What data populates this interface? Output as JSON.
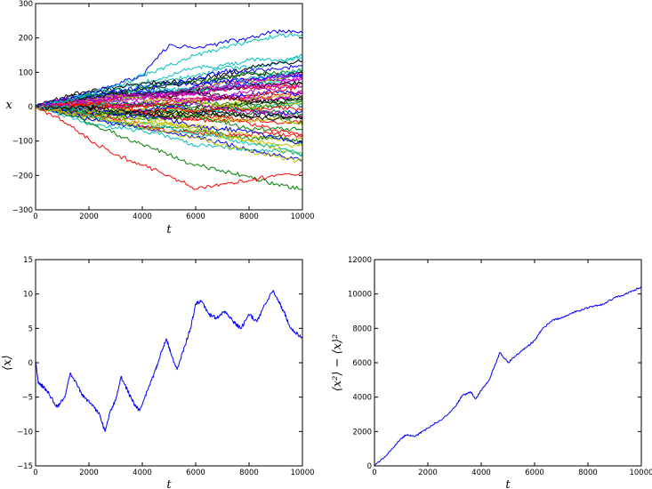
{
  "chart_data": [
    {
      "type": "line",
      "xlabel": "t",
      "ylabel": "x",
      "xlim": [
        0,
        10000
      ],
      "ylim": [
        -300,
        300
      ],
      "xticks": [
        "0",
        "2000",
        "4000",
        "6000",
        "8000",
        "10000"
      ],
      "yticks": [
        "300",
        "200",
        "100",
        "0",
        "−100",
        "−200",
        "−300"
      ],
      "n_series": 50,
      "series_colors": [
        "#0000ff",
        "#008000",
        "#ff0000",
        "#00bfbf",
        "#bf00bf",
        "#bfbf00",
        "#000000"
      ],
      "series": [
        {
          "x": [
            0,
            1000,
            2000,
            3000,
            4000,
            5000,
            6000,
            7000,
            8000,
            9000,
            10000
          ],
          "y": [
            0,
            20,
            40,
            65,
            90,
            180,
            170,
            185,
            200,
            220,
            215
          ]
        },
        {
          "x": [
            0,
            1000,
            2000,
            3000,
            4000,
            5000,
            6000,
            7000,
            8000,
            9000,
            10000
          ],
          "y": [
            0,
            -20,
            -45,
            -80,
            -110,
            -140,
            -170,
            -185,
            -205,
            -225,
            -240
          ]
        },
        {
          "x": [
            0,
            1000,
            2000,
            3000,
            4000,
            5000,
            6000,
            7000,
            8000,
            9000,
            10000
          ],
          "y": [
            0,
            -40,
            -95,
            -140,
            -170,
            -200,
            -240,
            -225,
            -215,
            -200,
            -190
          ]
        },
        {
          "x": [
            0,
            1000,
            2000,
            3000,
            4000,
            5000,
            6000,
            7000,
            8000,
            9000,
            10000
          ],
          "y": [
            0,
            15,
            40,
            60,
            90,
            120,
            150,
            170,
            190,
            205,
            210
          ]
        },
        {
          "x": [
            0,
            1000,
            2000,
            3000,
            4000,
            5000,
            6000,
            7000,
            8000,
            9000,
            10000
          ],
          "y": [
            0,
            10,
            20,
            15,
            25,
            35,
            40,
            30,
            45,
            55,
            60
          ]
        },
        {
          "x": [
            0,
            1000,
            2000,
            3000,
            4000,
            5000,
            6000,
            7000,
            8000,
            9000,
            10000
          ],
          "y": [
            0,
            -15,
            -25,
            -40,
            -60,
            -75,
            -90,
            -110,
            -130,
            -145,
            -160
          ]
        }
      ]
    },
    {
      "type": "line",
      "xlabel": "t",
      "ylabel": "⟨x⟩",
      "xlim": [
        0,
        10000
      ],
      "ylim": [
        -15,
        15
      ],
      "xticks": [
        "0",
        "2000",
        "4000",
        "6000",
        "8000",
        "10000"
      ],
      "yticks": [
        "15",
        "10",
        "5",
        "0",
        "−5",
        "−10",
        "−15"
      ],
      "series": [
        {
          "color": "#0000ff",
          "x": [
            0,
            100,
            300,
            500,
            800,
            1100,
            1300,
            1600,
            1800,
            2100,
            2400,
            2600,
            2800,
            3000,
            3200,
            3500,
            3700,
            3900,
            4200,
            4500,
            4700,
            4900,
            5100,
            5300,
            5600,
            5800,
            6000,
            6200,
            6500,
            6800,
            7100,
            7400,
            7700,
            8000,
            8300,
            8600,
            8900,
            9100,
            9300,
            9500,
            9700,
            10000
          ],
          "y": [
            0.5,
            -3,
            -3.5,
            -4.5,
            -6.5,
            -5,
            -1.5,
            -3.5,
            -5,
            -6,
            -7.5,
            -10,
            -7,
            -5.5,
            -2,
            -4.5,
            -6,
            -7,
            -4,
            -1,
            1.5,
            3.5,
            1,
            -1,
            2.5,
            5,
            8.5,
            9,
            7,
            6.5,
            7.5,
            6,
            5,
            7,
            6,
            8.5,
            10.5,
            9,
            7.5,
            5.5,
            4.5,
            3.5
          ]
        }
      ]
    },
    {
      "type": "line",
      "xlabel": "t",
      "ylabel": "⟨x²⟩ − ⟨x⟩²",
      "xlim": [
        0,
        10000
      ],
      "ylim": [
        0,
        12000
      ],
      "xticks": [
        "0",
        "2000",
        "4000",
        "6000",
        "8000",
        "10000"
      ],
      "yticks": [
        "12000",
        "10000",
        "8000",
        "6000",
        "4000",
        "2000",
        "0"
      ],
      "series": [
        {
          "color": "#0000ff",
          "x": [
            0,
            500,
            1000,
            1200,
            1500,
            1800,
            2200,
            2600,
            3000,
            3300,
            3600,
            3800,
            4000,
            4300,
            4700,
            5000,
            5300,
            5700,
            6000,
            6300,
            6700,
            7000,
            7400,
            7800,
            8200,
            8600,
            9000,
            9300,
            9700,
            10000
          ],
          "y": [
            0,
            700,
            1600,
            1800,
            1700,
            2000,
            2400,
            2800,
            3400,
            4100,
            4300,
            3900,
            4400,
            5000,
            6600,
            6000,
            6400,
            6900,
            7300,
            8000,
            8500,
            8600,
            8900,
            9100,
            9300,
            9400,
            9800,
            9900,
            10200,
            10400
          ]
        }
      ]
    }
  ]
}
